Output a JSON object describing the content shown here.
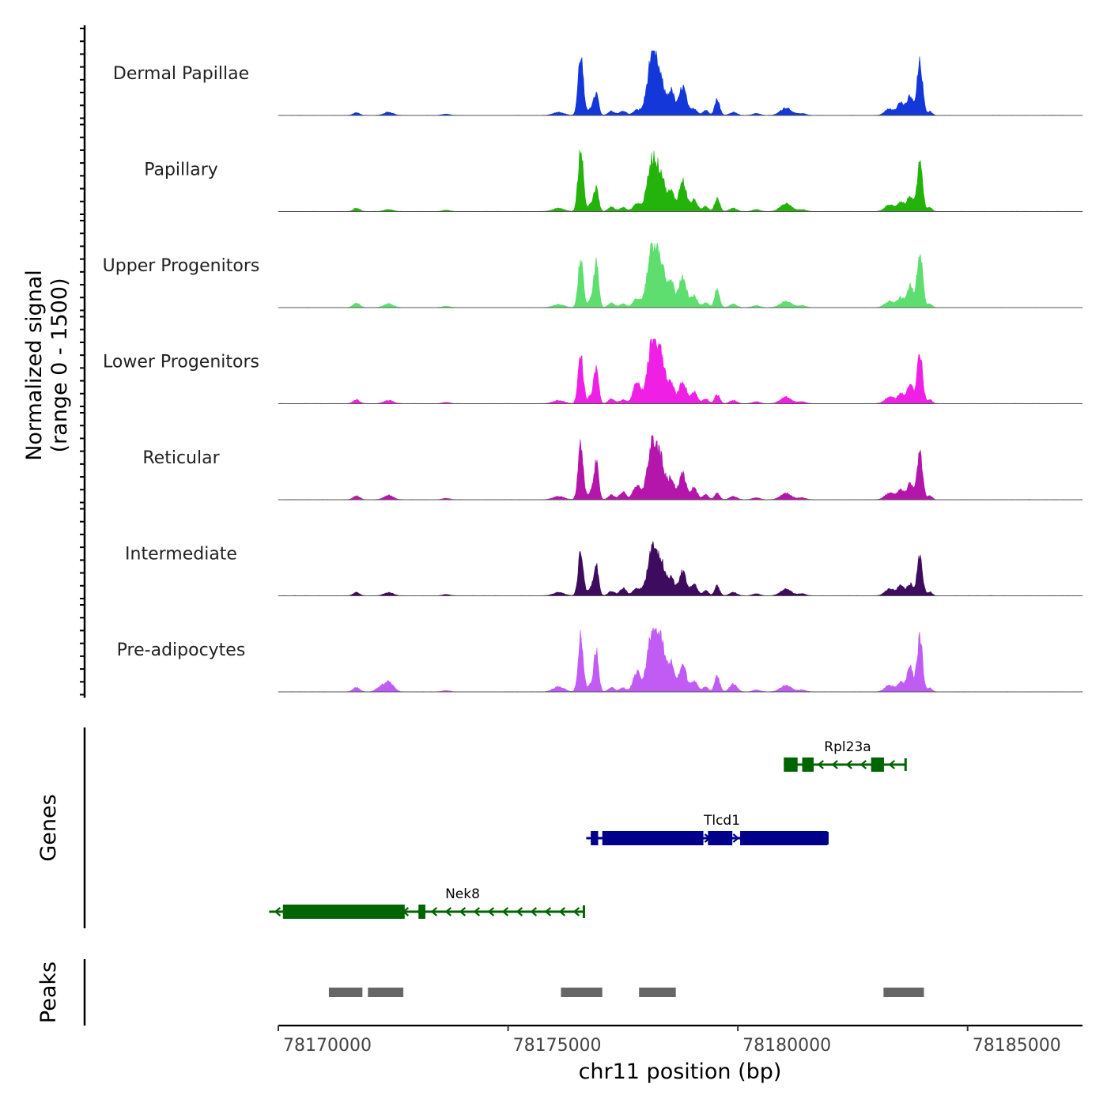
{
  "chart_data": {
    "type": "area",
    "title": "",
    "xlabel": "chr11 position (bp)",
    "ylabel_line1": "Normalized signal",
    "ylabel_line2": "(range 0 - 1500)",
    "xlim": [
      78170000,
      78187500
    ],
    "ylim": [
      0,
      1500
    ],
    "x_ticks": [
      {
        "value": 78170000,
        "label": "78170000"
      },
      {
        "value": 78175000,
        "label": "78175000"
      },
      {
        "value": 78180000,
        "label": "78180000"
      },
      {
        "value": 78185000,
        "label": "78185000"
      }
    ],
    "peaks": [
      {
        "x": 78171700,
        "h": 0.06,
        "w": 70
      },
      {
        "x": 78172400,
        "h": 0.05,
        "w": 100
      },
      {
        "x": 78173650,
        "h": 0.02,
        "w": 80
      },
      {
        "x": 78176100,
        "h": 0.05,
        "w": 120
      },
      {
        "x": 78176580,
        "h": 0.75,
        "w": 55
      },
      {
        "x": 78176800,
        "h": 0.12,
        "w": 60
      },
      {
        "x": 78176920,
        "h": 0.45,
        "w": 50
      },
      {
        "x": 78177250,
        "h": 0.07,
        "w": 70
      },
      {
        "x": 78177500,
        "h": 0.06,
        "w": 70
      },
      {
        "x": 78177800,
        "h": 0.12,
        "w": 80
      },
      {
        "x": 78178150,
        "h": 0.8,
        "w": 110
      },
      {
        "x": 78178350,
        "h": 0.4,
        "w": 80
      },
      {
        "x": 78178550,
        "h": 0.3,
        "w": 70
      },
      {
        "x": 78178800,
        "h": 0.38,
        "w": 80
      },
      {
        "x": 78179050,
        "h": 0.18,
        "w": 70
      },
      {
        "x": 78179300,
        "h": 0.08,
        "w": 60
      },
      {
        "x": 78179550,
        "h": 0.2,
        "w": 55
      },
      {
        "x": 78179900,
        "h": 0.05,
        "w": 80
      },
      {
        "x": 78180400,
        "h": 0.03,
        "w": 80
      },
      {
        "x": 78181050,
        "h": 0.1,
        "w": 120
      },
      {
        "x": 78181400,
        "h": 0.03,
        "w": 80
      },
      {
        "x": 78183300,
        "h": 0.1,
        "w": 100
      },
      {
        "x": 78183550,
        "h": 0.15,
        "w": 80
      },
      {
        "x": 78183750,
        "h": 0.28,
        "w": 60
      },
      {
        "x": 78183960,
        "h": 0.8,
        "w": 60
      },
      {
        "x": 78184180,
        "h": 0.06,
        "w": 50
      }
    ],
    "tracks": [
      {
        "name": "Dermal Papillae",
        "color": "#1337D8",
        "overrides": [
          [
            78171700,
            0.04
          ],
          [
            78172400,
            0.05
          ],
          [
            78176580,
            0.95
          ],
          [
            78176920,
            0.33
          ],
          [
            78177500,
            0.07
          ],
          [
            78177800,
            0.08
          ],
          [
            78178150,
            1.0
          ],
          [
            78178350,
            0.35
          ],
          [
            78178550,
            0.38
          ],
          [
            78178800,
            0.45
          ],
          [
            78179050,
            0.1
          ],
          [
            78179550,
            0.25
          ],
          [
            78181050,
            0.12
          ],
          [
            78183550,
            0.2
          ],
          [
            78183750,
            0.3
          ],
          [
            78183960,
            0.82
          ]
        ]
      },
      {
        "name": "Papillary",
        "color": "#23B30B",
        "overrides": [
          [
            78171700,
            0.05
          ],
          [
            78172400,
            0.03
          ],
          [
            78176580,
            1.0
          ],
          [
            78176920,
            0.35
          ],
          [
            78178150,
            0.85
          ],
          [
            78178350,
            0.42
          ],
          [
            78178550,
            0.3
          ],
          [
            78178800,
            0.48
          ],
          [
            78179550,
            0.2
          ],
          [
            78181050,
            0.12
          ],
          [
            78183750,
            0.24
          ],
          [
            78183960,
            0.72
          ]
        ]
      },
      {
        "name": "Upper Progenitors",
        "color": "#5DDE6E",
        "overrides": [
          [
            78171700,
            0.07
          ],
          [
            78172400,
            0.06
          ],
          [
            78176580,
            0.75
          ],
          [
            78176920,
            0.7
          ],
          [
            78177800,
            0.13
          ],
          [
            78178150,
            1.0
          ],
          [
            78178350,
            0.5
          ],
          [
            78178550,
            0.4
          ],
          [
            78178800,
            0.5
          ],
          [
            78179550,
            0.28
          ],
          [
            78183750,
            0.35
          ],
          [
            78183960,
            0.9
          ]
        ]
      },
      {
        "name": "Lower Progenitors",
        "color": "#F01FE6",
        "overrides": [
          [
            78171700,
            0.06
          ],
          [
            78176580,
            0.75
          ],
          [
            78176920,
            0.57
          ],
          [
            78177800,
            0.32
          ],
          [
            78178150,
            1.0
          ],
          [
            78178350,
            0.58
          ],
          [
            78178550,
            0.3
          ],
          [
            78178800,
            0.35
          ],
          [
            78179550,
            0.14
          ],
          [
            78183750,
            0.33
          ],
          [
            78183960,
            0.78
          ]
        ]
      },
      {
        "name": "Reticular",
        "color": "#B415AA",
        "overrides": [
          [
            78171700,
            0.06
          ],
          [
            78172400,
            0.07
          ],
          [
            78176580,
            0.86
          ],
          [
            78176920,
            0.57
          ],
          [
            78177500,
            0.12
          ],
          [
            78177800,
            0.22
          ],
          [
            78178150,
            0.92
          ],
          [
            78178350,
            0.45
          ],
          [
            78178550,
            0.32
          ],
          [
            78178800,
            0.4
          ],
          [
            78179550,
            0.1
          ],
          [
            78183750,
            0.25
          ],
          [
            78183960,
            0.75
          ]
        ]
      },
      {
        "name": "Intermediate",
        "color": "#3E0C5E",
        "overrides": [
          [
            78171700,
            0.05
          ],
          [
            78176580,
            0.7
          ],
          [
            78176920,
            0.5
          ],
          [
            78177500,
            0.12
          ],
          [
            78178150,
            0.75
          ],
          [
            78178350,
            0.4
          ],
          [
            78178550,
            0.28
          ],
          [
            78178800,
            0.38
          ],
          [
            78179550,
            0.15
          ],
          [
            78183750,
            0.18
          ],
          [
            78183960,
            0.6
          ]
        ]
      },
      {
        "name": "Pre-adipocytes",
        "color": "#C05CF4",
        "overrides": [
          [
            78171700,
            0.07
          ],
          [
            78172400,
            0.16
          ],
          [
            78172200,
            0.06
          ],
          [
            78176100,
            0.08
          ],
          [
            78176580,
            0.88
          ],
          [
            78176920,
            0.65
          ],
          [
            78177800,
            0.3
          ],
          [
            78178150,
            1.0
          ],
          [
            78178350,
            0.6
          ],
          [
            78178550,
            0.45
          ],
          [
            78178800,
            0.42
          ],
          [
            78179550,
            0.25
          ],
          [
            78179900,
            0.12
          ],
          [
            78183750,
            0.42
          ],
          [
            78183960,
            0.85
          ]
        ]
      }
    ],
    "genes_axis_label": "Genes",
    "genes": [
      {
        "name": "Rpl23a",
        "color": "#006400",
        "start": 78181000,
        "end": 78183650,
        "strand": "-",
        "exons": [
          [
            78181000,
            78181300
          ],
          [
            78181400,
            78181650
          ],
          [
            78182900,
            78183180
          ]
        ]
      },
      {
        "name": "Tlcd1",
        "color": "#00008B",
        "start": 78176700,
        "end": 78181950,
        "strand": "+",
        "exons": [
          [
            78176800,
            78176960
          ],
          [
            78177050,
            78179250
          ],
          [
            78179350,
            78179880
          ],
          [
            78180050,
            78181950
          ]
        ]
      },
      {
        "name": "Nek8",
        "color": "#006400",
        "start": 78169800,
        "end": 78176650,
        "strand": "-",
        "exons": [
          [
            78170100,
            78172750
          ],
          [
            78173050,
            78173200
          ]
        ]
      }
    ],
    "peaks_axis_label": "Peaks",
    "peak_regions": [
      {
        "start": 78171100,
        "end": 78171830
      },
      {
        "start": 78171950,
        "end": 78172720
      },
      {
        "start": 78176150,
        "end": 78177050
      },
      {
        "start": 78177850,
        "end": 78178650
      },
      {
        "start": 78183170,
        "end": 78184050
      }
    ]
  }
}
